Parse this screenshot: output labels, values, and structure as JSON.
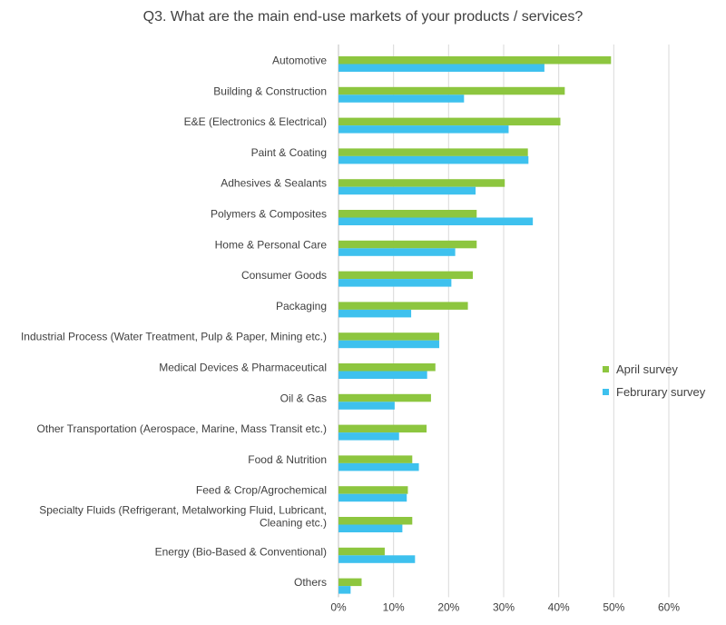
{
  "chart_data": {
    "type": "bar",
    "orientation": "horizontal",
    "title": "Q3. What are the main end-use markets of your products / services?",
    "categories": [
      [
        "Automotive"
      ],
      [
        "Building & Construction"
      ],
      [
        "E&E (Electronics & Electrical)"
      ],
      [
        "Paint & Coating"
      ],
      [
        "Adhesives & Sealants"
      ],
      [
        "Polymers & Composites"
      ],
      [
        "Home & Personal Care"
      ],
      [
        "Consumer Goods"
      ],
      [
        "Packaging"
      ],
      [
        "Industrial Process (Water Treatment, Pulp & Paper, Mining etc.)"
      ],
      [
        "Medical Devices & Pharmaceutical"
      ],
      [
        "Oil & Gas"
      ],
      [
        "Other Transportation (Aerospace, Marine, Mass Transit etc.)"
      ],
      [
        "Food & Nutrition"
      ],
      [
        "Feed & Crop/Agrochemical"
      ],
      [
        "Specialty Fluids (Refrigerant, Metalworking Fluid, Lubricant,",
        "Cleaning etc.)"
      ],
      [
        "Energy (Bio-Based & Conventional)"
      ],
      [
        "Others"
      ]
    ],
    "series": [
      {
        "name": "April survey",
        "color": "#8dc63f",
        "values": [
          49.5,
          41.1,
          40.3,
          34.4,
          30.2,
          25.1,
          25.1,
          24.4,
          23.5,
          18.3,
          17.6,
          16.8,
          16.0,
          13.4,
          12.6,
          13.4,
          8.4,
          4.2
        ]
      },
      {
        "name": "Februrary survey",
        "color": "#3ec1ee",
        "values": [
          37.4,
          22.8,
          30.9,
          34.5,
          24.9,
          35.3,
          21.2,
          20.5,
          13.2,
          18.3,
          16.1,
          10.2,
          11.0,
          14.6,
          12.4,
          11.6,
          13.9,
          2.2
        ]
      }
    ],
    "xlim": [
      0,
      60
    ],
    "xticks": [
      "0%",
      "10%",
      "20%",
      "30%",
      "40%",
      "50%",
      "60%"
    ],
    "grid": "vertical",
    "legend_position": "right"
  }
}
